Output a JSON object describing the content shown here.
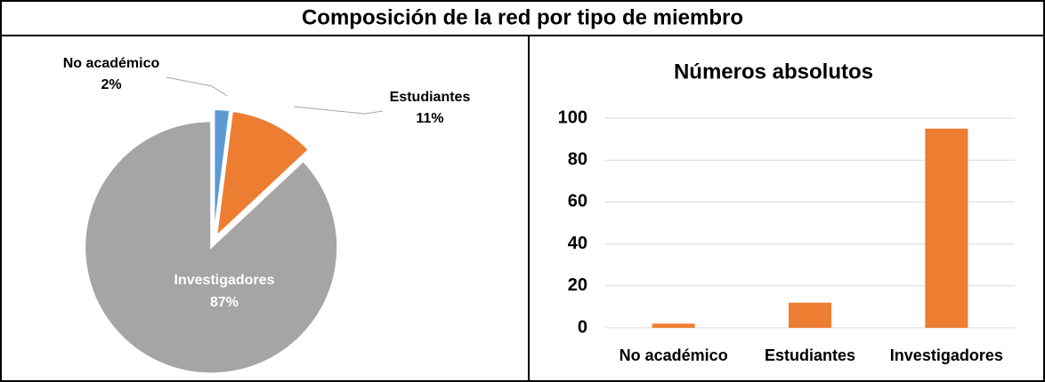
{
  "title": "Composición de la red por tipo de miembro",
  "chart_data": [
    {
      "type": "pie",
      "categories": [
        "No académico",
        "Estudiantes",
        "Investigadores"
      ],
      "values": [
        2,
        11,
        87
      ],
      "value_labels": [
        "2%",
        "11%",
        "87%"
      ],
      "colors": [
        "#5b9bd5",
        "#ed7d31",
        "#a5a5a5"
      ]
    },
    {
      "type": "bar",
      "title": "Números absolutos",
      "categories": [
        "No académico",
        "Estudiantes",
        "Investigadores"
      ],
      "values": [
        2,
        12,
        95
      ],
      "color": "#ed7d31",
      "ylim": [
        0,
        100
      ],
      "yticks": [
        0,
        20,
        40,
        60,
        80,
        100
      ],
      "grid": true
    }
  ]
}
